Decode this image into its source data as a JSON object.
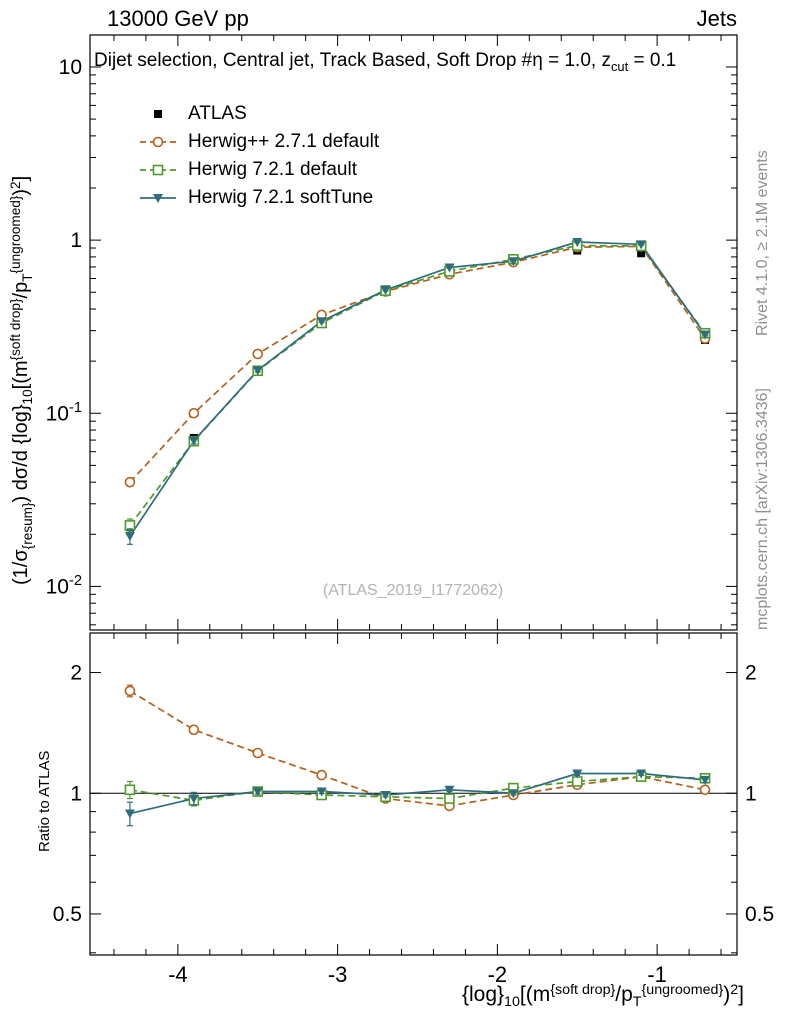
{
  "header": {
    "left": "13000 GeV pp",
    "right": "Jets"
  },
  "title_parts": [
    {
      "t": "Dijet selection, Central jet, Track Based, Soft Drop #η = 1.0, z"
    },
    {
      "t": "cut",
      "s": "sub"
    },
    {
      "t": " = 0.1"
    }
  ],
  "watermark": "(ATLAS_2019_I1772062)",
  "side_notes": {
    "top": "Rivet 4.1.0, ≥ 2.1M events",
    "bottom": "mcplots.cern.ch [arXiv:1306.3436]"
  },
  "chart_data": {
    "type": "line",
    "x": [
      -4.3,
      -3.9,
      -3.5,
      -3.1,
      -2.7,
      -2.3,
      -1.9,
      -1.5,
      -1.1,
      -0.7
    ],
    "x_axis": {
      "range": [
        -4.55,
        -0.5
      ],
      "ticks": [
        {
          "v": -4,
          "label": "-4"
        },
        {
          "v": -3,
          "label": "-3"
        },
        {
          "v": -2,
          "label": "-2"
        },
        {
          "v": -1,
          "label": "-1"
        }
      ],
      "minor_step": 0.2
    },
    "main_axis": {
      "ylim": [
        0.0056,
        15.3
      ],
      "scale": "log",
      "ticks": [
        {
          "v": 10,
          "label": [
            {
              "t": "10"
            }
          ]
        },
        {
          "v": 1,
          "label": [
            {
              "t": "1"
            }
          ]
        },
        {
          "v": 0.1,
          "label": [
            {
              "t": "10"
            },
            {
              "t": "-1",
              "s": "sup"
            }
          ]
        },
        {
          "v": 0.01,
          "label": [
            {
              "t": "10"
            },
            {
              "t": "-2",
              "s": "sup"
            }
          ]
        }
      ],
      "label_sides": [
        "left"
      ]
    },
    "ratio_axis": {
      "ylim": [
        0.395,
        2.51
      ],
      "scale": "log",
      "ticks": [
        {
          "v": 2,
          "label": [
            {
              "t": "2"
            }
          ]
        },
        {
          "v": 1,
          "label": [
            {
              "t": "1"
            }
          ]
        },
        {
          "v": 0.5,
          "label": [
            {
              "t": "0.5"
            }
          ]
        }
      ],
      "label_sides": [
        "left",
        "right"
      ]
    },
    "ratio_ylabel": "Ratio to ATLAS",
    "ylabel_parts": [
      {
        "t": "(1/σ"
      },
      {
        "t": "{resum}",
        "s": "sub"
      },
      {
        "t": ") dσ/d {log}"
      },
      {
        "t": "10",
        "s": "sub"
      },
      {
        "t": "[(m"
      },
      {
        "t": "{soft drop}",
        "s": "sup"
      },
      {
        "t": "/p"
      },
      {
        "t": "T",
        "s": "sub"
      },
      {
        "t": "{ungroomed}",
        "s": "sup"
      },
      {
        "t": ")"
      },
      {
        "t": "2",
        "s": "sup"
      },
      {
        "t": "]"
      }
    ],
    "xlabel_parts": [
      {
        "t": "{log}"
      },
      {
        "t": "10",
        "s": "sub"
      },
      {
        "t": "[(m"
      },
      {
        "t": "{soft drop}",
        "s": "sup"
      },
      {
        "t": "/p"
      },
      {
        "t": "T",
        "s": "sub"
      },
      {
        "t": "{ungroomed}",
        "s": "sup"
      },
      {
        "t": ")"
      },
      {
        "t": "2",
        "s": "sup"
      },
      {
        "t": "]"
      }
    ],
    "series": [
      {
        "id": "atlas",
        "name": "ATLAS",
        "color": "#000000",
        "marker": "square-filled",
        "line": "none",
        "main_y": [
          0.022,
          0.072,
          0.175,
          0.335,
          0.52,
          0.68,
          0.755,
          0.87,
          0.84,
          0.265
        ],
        "main_err": [
          0.0015,
          0.003,
          0.006,
          0.008,
          0.01,
          0.011,
          0.011,
          0.013,
          0.012,
          0.008
        ],
        "ratio_y": null
      },
      {
        "id": "herwigpp-271-default",
        "name": "Herwig++ 2.7.1 default",
        "color": "#b4611a",
        "marker": "circle-open",
        "line": "dashed",
        "main_y": [
          0.04,
          0.1,
          0.22,
          0.37,
          0.505,
          0.635,
          0.745,
          0.91,
          0.92,
          0.27
        ],
        "main_err": [
          0.002,
          0.003,
          0.004,
          0.005,
          0.005,
          0.006,
          0.006,
          0.008,
          0.008,
          0.005
        ],
        "ratio_y": [
          1.8,
          1.44,
          1.26,
          1.11,
          0.97,
          0.93,
          0.99,
          1.05,
          1.1,
          1.02
        ],
        "ratio_err": [
          0.06,
          0.035,
          0.02,
          0.015,
          0.012,
          0.012,
          0.012,
          0.015,
          0.015,
          0.02
        ]
      },
      {
        "id": "herwig-721-default",
        "name": "Herwig 7.2.1 default",
        "color": "#4e9b2b",
        "marker": "square-open",
        "line": "dashed",
        "main_y": [
          0.0225,
          0.069,
          0.176,
          0.332,
          0.51,
          0.66,
          0.775,
          0.93,
          0.925,
          0.29
        ],
        "main_err": [
          0.002,
          0.003,
          0.004,
          0.005,
          0.005,
          0.006,
          0.006,
          0.008,
          0.008,
          0.005
        ],
        "ratio_y": [
          1.02,
          0.96,
          1.01,
          0.99,
          0.98,
          0.97,
          1.03,
          1.07,
          1.1,
          1.09
        ],
        "ratio_err": [
          0.05,
          0.03,
          0.015,
          0.012,
          0.01,
          0.01,
          0.01,
          0.012,
          0.012,
          0.018
        ]
      },
      {
        "id": "herwig-721-softtune",
        "name": "Herwig 7.2.1 softTune",
        "color": "#2f6c7c",
        "marker": "triangle-down-filled",
        "line": "solid",
        "main_y": [
          0.0195,
          0.0695,
          0.177,
          0.34,
          0.515,
          0.695,
          0.755,
          0.975,
          0.945,
          0.285
        ],
        "main_err": [
          0.002,
          0.003,
          0.004,
          0.005,
          0.005,
          0.006,
          0.006,
          0.008,
          0.008,
          0.005
        ],
        "ratio_y": [
          0.89,
          0.97,
          1.01,
          1.01,
          0.99,
          1.02,
          1.0,
          1.12,
          1.12,
          1.08
        ],
        "ratio_err": [
          0.06,
          0.035,
          0.015,
          0.012,
          0.01,
          0.01,
          0.01,
          0.012,
          0.012,
          0.018
        ]
      }
    ]
  }
}
